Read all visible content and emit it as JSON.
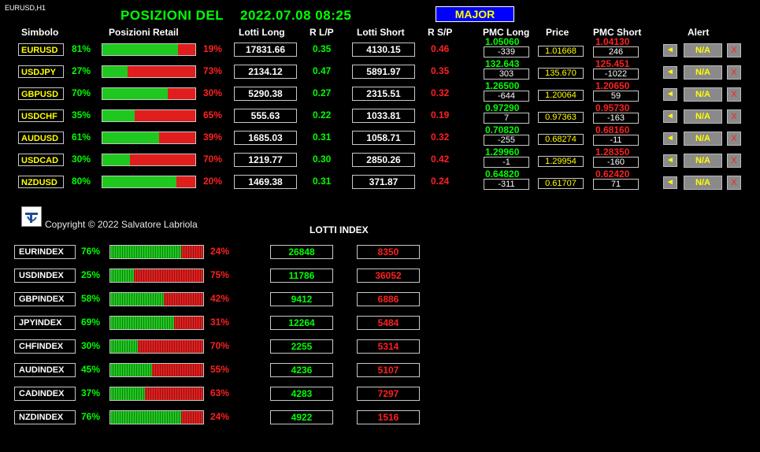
{
  "chart_label": "EURUSD,H1",
  "title": {
    "prefix": "POSIZIONI  DEL",
    "datetime": "2022.07.08 08:25"
  },
  "major_button": "MAJOR",
  "headers": {
    "simbolo": "Simbolo",
    "posizioni_retail": "Posizioni Retail",
    "lotti_long": "Lotti Long",
    "r_lp": "R L/P",
    "lotti_short": "Lotti Short",
    "r_sp": "R S/P",
    "pmc_long": "PMC Long",
    "price": "Price",
    "pmc_short": "PMC Short",
    "alert": "Alert"
  },
  "pairs": [
    {
      "symbol": "EURUSD",
      "long_pct": "81%",
      "long_frac": 0.81,
      "short_pct": "19%",
      "lotti_long": "17831.66",
      "r_lp": "0.35",
      "lotti_short": "4130.15",
      "r_sp": "0.46",
      "pmc_long": "1.05060",
      "pmc_long_pips": "-339",
      "price": "1.01668",
      "pmc_short": "1.04130",
      "pmc_short_pips": "246",
      "alert": "N/A"
    },
    {
      "symbol": "USDJPY",
      "long_pct": "27%",
      "long_frac": 0.27,
      "short_pct": "73%",
      "lotti_long": "2134.12",
      "r_lp": "0.47",
      "lotti_short": "5891.97",
      "r_sp": "0.35",
      "pmc_long": "132.643",
      "pmc_long_pips": "303",
      "price": "135.670",
      "pmc_short": "125.451",
      "pmc_short_pips": "-1022",
      "alert": "N/A"
    },
    {
      "symbol": "GBPUSD",
      "long_pct": "70%",
      "long_frac": 0.7,
      "short_pct": "30%",
      "lotti_long": "5290.38",
      "r_lp": "0.27",
      "lotti_short": "2315.51",
      "r_sp": "0.32",
      "pmc_long": "1.26500",
      "pmc_long_pips": "-644",
      "price": "1.20064",
      "pmc_short": "1.20650",
      "pmc_short_pips": "59",
      "alert": "N/A"
    },
    {
      "symbol": "USDCHF",
      "long_pct": "35%",
      "long_frac": 0.35,
      "short_pct": "65%",
      "lotti_long": "555.63",
      "r_lp": "0.22",
      "lotti_short": "1033.81",
      "r_sp": "0.19",
      "pmc_long": "0.97290",
      "pmc_long_pips": "7",
      "price": "0.97363",
      "pmc_short": "0.95730",
      "pmc_short_pips": "-163",
      "alert": "N/A"
    },
    {
      "symbol": "AUDUSD",
      "long_pct": "61%",
      "long_frac": 0.61,
      "short_pct": "39%",
      "lotti_long": "1685.03",
      "r_lp": "0.31",
      "lotti_short": "1058.71",
      "r_sp": "0.32",
      "pmc_long": "0.70820",
      "pmc_long_pips": "-255",
      "price": "0.68274",
      "pmc_short": "0.68160",
      "pmc_short_pips": "-11",
      "alert": "N/A"
    },
    {
      "symbol": "USDCAD",
      "long_pct": "30%",
      "long_frac": 0.3,
      "short_pct": "70%",
      "lotti_long": "1219.77",
      "r_lp": "0.30",
      "lotti_short": "2850.26",
      "r_sp": "0.42",
      "pmc_long": "1.29960",
      "pmc_long_pips": "-1",
      "price": "1.29954",
      "pmc_short": "1.28350",
      "pmc_short_pips": "-160",
      "alert": "N/A"
    },
    {
      "symbol": "NZDUSD",
      "long_pct": "80%",
      "long_frac": 0.8,
      "short_pct": "20%",
      "lotti_long": "1469.38",
      "r_lp": "0.31",
      "lotti_short": "371.87",
      "r_sp": "0.24",
      "pmc_long": "0.64820",
      "pmc_long_pips": "-311",
      "price": "0.61707",
      "pmc_short": "0.62420",
      "pmc_short_pips": "71",
      "alert": "N/A"
    }
  ],
  "copyright": "Copyright © 2022 Salvatore Labriola",
  "lotti_index_title": "LOTTI INDEX",
  "indexes": [
    {
      "symbol": "EURINDEX",
      "long_pct": "76%",
      "long_frac": 0.76,
      "short_pct": "24%",
      "long": "26848",
      "short": "8350"
    },
    {
      "symbol": "USDINDEX",
      "long_pct": "25%",
      "long_frac": 0.25,
      "short_pct": "75%",
      "long": "11786",
      "short": "36052"
    },
    {
      "symbol": "GBPINDEX",
      "long_pct": "58%",
      "long_frac": 0.58,
      "short_pct": "42%",
      "long": "9412",
      "short": "6886"
    },
    {
      "symbol": "JPYINDEX",
      "long_pct": "69%",
      "long_frac": 0.69,
      "short_pct": "31%",
      "long": "12264",
      "short": "5484"
    },
    {
      "symbol": "CHFINDEX",
      "long_pct": "30%",
      "long_frac": 0.3,
      "short_pct": "70%",
      "long": "2255",
      "short": "5314"
    },
    {
      "symbol": "AUDINDEX",
      "long_pct": "45%",
      "long_frac": 0.45,
      "short_pct": "55%",
      "long": "4236",
      "short": "5107"
    },
    {
      "symbol": "CADINDEX",
      "long_pct": "37%",
      "long_frac": 0.37,
      "short_pct": "63%",
      "long": "4283",
      "short": "7297"
    },
    {
      "symbol": "NZDINDEX",
      "long_pct": "76%",
      "long_frac": 0.76,
      "short_pct": "24%",
      "long": "4922",
      "short": "1516"
    }
  ],
  "icons": {
    "alert": "megaphone-icon",
    "remove": "x-icon",
    "logo": "logo-icon"
  },
  "colors": {
    "long": "#00ff00",
    "short": "#ff2020",
    "symbol": "#ffff00",
    "major_bg": "#0000ff"
  }
}
